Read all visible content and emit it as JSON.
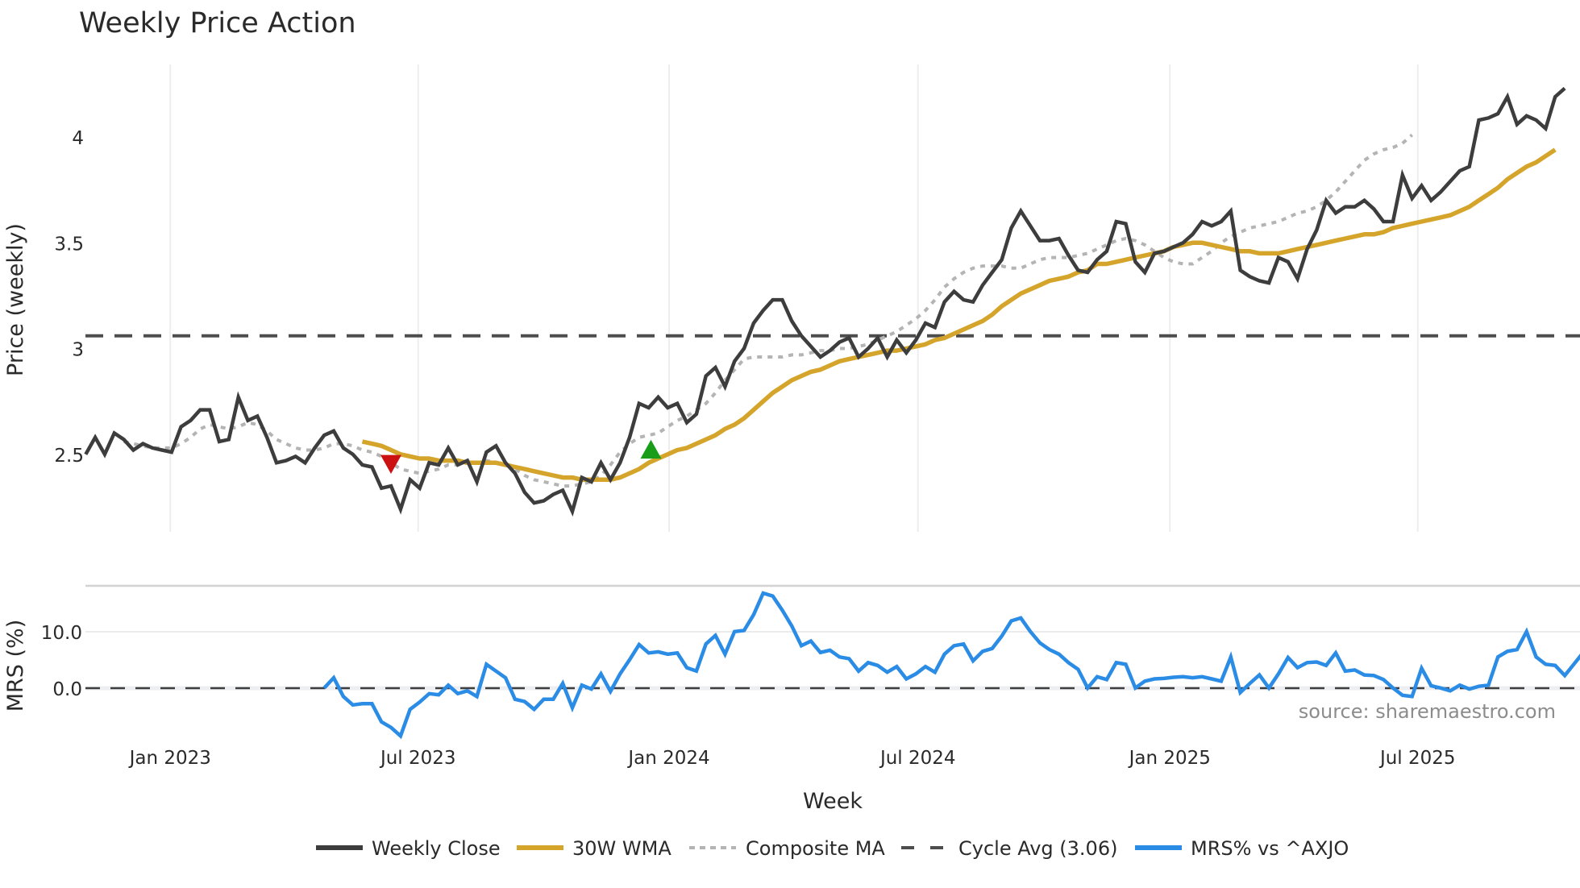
{
  "chart_data": [
    {
      "type": "line",
      "title": "Weekly Price Action",
      "xlabel": "Week",
      "ylabel": "Price (weekly)",
      "yticks": [
        "2.5",
        "3",
        "3.5",
        "4"
      ],
      "ylim": [
        2.18,
        4.35
      ],
      "xticks": [
        "Jan 2023",
        "Jul 2023",
        "Jan 2024",
        "Jul 2024",
        "Jan 2025",
        "Jul 2025"
      ],
      "grid": {
        "vertical": true,
        "horizontal": false
      },
      "hline": {
        "name": "Cycle Avg (3.06)",
        "value": 3.06
      },
      "markers": [
        {
          "type": "sell",
          "shape": "triangle-down",
          "color": "#cc1111",
          "week_index": 32,
          "value": 2.46
        },
        {
          "type": "buy",
          "shape": "triangle-up",
          "color": "#1a9e1a",
          "week_index": 59,
          "value": 2.52
        }
      ],
      "series": [
        {
          "name": "Weekly Close",
          "color": "#3d3d3d",
          "values": [
            2.5,
            2.58,
            2.5,
            2.6,
            2.57,
            2.52,
            2.55,
            2.53,
            2.52,
            2.51,
            2.63,
            2.66,
            2.71,
            2.71,
            2.56,
            2.57,
            2.77,
            2.66,
            2.68,
            2.58,
            2.46,
            2.47,
            2.49,
            2.46,
            2.53,
            2.59,
            2.61,
            2.53,
            2.5,
            2.45,
            2.44,
            2.34,
            2.35,
            2.24,
            2.38,
            2.34,
            2.46,
            2.45,
            2.53,
            2.45,
            2.47,
            2.37,
            2.51,
            2.54,
            2.46,
            2.41,
            2.32,
            2.27,
            2.28,
            2.31,
            2.33,
            2.23,
            2.39,
            2.37,
            2.46,
            2.38,
            2.46,
            2.58,
            2.74,
            2.72,
            2.77,
            2.72,
            2.74,
            2.65,
            2.69,
            2.87,
            2.91,
            2.82,
            2.94,
            3.0,
            3.12,
            3.18,
            3.23,
            3.23,
            3.13,
            3.06,
            3.01,
            2.96,
            2.99,
            3.03,
            3.05,
            2.96,
            3.0,
            3.05,
            2.96,
            3.04,
            2.98,
            3.04,
            3.12,
            3.1,
            3.22,
            3.27,
            3.23,
            3.22,
            3.3,
            3.36,
            3.42,
            3.57,
            3.65,
            3.58,
            3.51,
            3.51,
            3.52,
            3.44,
            3.37,
            3.36,
            3.42,
            3.46,
            3.6,
            3.59,
            3.41,
            3.36,
            3.45,
            3.46,
            3.48,
            3.5,
            3.54,
            3.6,
            3.58,
            3.6,
            3.65,
            3.37,
            3.34,
            3.32,
            3.31,
            3.43,
            3.41,
            3.33,
            3.47,
            3.56,
            3.7,
            3.64,
            3.67,
            3.67,
            3.7,
            3.66,
            3.6,
            3.6,
            3.82,
            3.71,
            3.77,
            3.7,
            3.74,
            3.79,
            3.84,
            3.86,
            4.08,
            4.09,
            4.11,
            4.19,
            4.06,
            4.1,
            4.08,
            4.04,
            4.19,
            4.23
          ]
        },
        {
          "name": "30W WMA",
          "color": "#d4a52a",
          "start_index": 29,
          "values": [
            2.56,
            2.55,
            2.54,
            2.52,
            2.5,
            2.49,
            2.48,
            2.48,
            2.47,
            2.47,
            2.47,
            2.46,
            2.46,
            2.46,
            2.46,
            2.45,
            2.44,
            2.43,
            2.42,
            2.41,
            2.4,
            2.39,
            2.39,
            2.38,
            2.38,
            2.38,
            2.38,
            2.39,
            2.41,
            2.43,
            2.46,
            2.48,
            2.5,
            2.52,
            2.53,
            2.55,
            2.57,
            2.59,
            2.62,
            2.64,
            2.67,
            2.71,
            2.75,
            2.79,
            2.82,
            2.85,
            2.87,
            2.89,
            2.9,
            2.92,
            2.94,
            2.95,
            2.96,
            2.97,
            2.98,
            2.99,
            2.99,
            3.0,
            3.01,
            3.02,
            3.04,
            3.05,
            3.07,
            3.09,
            3.11,
            3.13,
            3.16,
            3.2,
            3.23,
            3.26,
            3.28,
            3.3,
            3.32,
            3.33,
            3.34,
            3.36,
            3.37,
            3.4,
            3.4,
            3.41,
            3.42,
            3.43,
            3.44,
            3.45,
            3.46,
            3.48,
            3.49,
            3.5,
            3.5,
            3.49,
            3.48,
            3.47,
            3.46,
            3.46,
            3.45,
            3.45,
            3.45,
            3.46,
            3.47,
            3.48,
            3.49,
            3.5,
            3.51,
            3.52,
            3.53,
            3.54,
            3.54,
            3.55,
            3.57,
            3.58,
            3.59,
            3.6,
            3.61,
            3.62,
            3.63,
            3.65,
            3.67,
            3.7,
            3.73,
            3.76,
            3.8,
            3.83,
            3.86,
            3.88,
            3.91,
            3.94
          ]
        },
        {
          "name": "Composite MA",
          "color": "#b4b4b4",
          "start_index": 4,
          "values": [
            2.56,
            2.55,
            2.54,
            2.53,
            2.53,
            2.53,
            2.55,
            2.58,
            2.62,
            2.64,
            2.63,
            2.62,
            2.63,
            2.65,
            2.64,
            2.61,
            2.57,
            2.55,
            2.53,
            2.52,
            2.52,
            2.53,
            2.55,
            2.55,
            2.54,
            2.52,
            2.51,
            2.49,
            2.46,
            2.43,
            2.42,
            2.41,
            2.42,
            2.43,
            2.45,
            2.45,
            2.46,
            2.46,
            2.47,
            2.46,
            2.45,
            2.43,
            2.4,
            2.38,
            2.37,
            2.36,
            2.35,
            2.35,
            2.36,
            2.37,
            2.4,
            2.45,
            2.51,
            2.55,
            2.58,
            2.59,
            2.6,
            2.63,
            2.66,
            2.68,
            2.71,
            2.74,
            2.79,
            2.85,
            2.9,
            2.95,
            2.96,
            2.96,
            2.96,
            2.96,
            2.97,
            2.97,
            2.98,
            2.99,
            2.99,
            3.0,
            3.0,
            3.01,
            3.02,
            3.04,
            3.06,
            3.08,
            3.11,
            3.14,
            3.18,
            3.23,
            3.29,
            3.33,
            3.36,
            3.38,
            3.39,
            3.39,
            3.39,
            3.38,
            3.38,
            3.4,
            3.42,
            3.43,
            3.43,
            3.43,
            3.44,
            3.45,
            3.47,
            3.49,
            3.51,
            3.52,
            3.51,
            3.49,
            3.46,
            3.43,
            3.41,
            3.4,
            3.4,
            3.43,
            3.46,
            3.5,
            3.53,
            3.55,
            3.57,
            3.58,
            3.59,
            3.6,
            3.62,
            3.64,
            3.65,
            3.67,
            3.7,
            3.74,
            3.79,
            3.84,
            3.89,
            3.92,
            3.94,
            3.95,
            3.97,
            4.01
          ]
        }
      ]
    },
    {
      "type": "line",
      "title": "",
      "xlabel": "Week",
      "ylabel": "MRS (%)",
      "yticks": [
        "0.0",
        "10.0"
      ],
      "ylim": [
        -9.5,
        17.5
      ],
      "hline": {
        "value": 0.0
      },
      "annotation": "source: sharemaestro.com",
      "series": [
        {
          "name": "MRS% vs ^AXJO",
          "color": "#2b8ce6",
          "start_index": 25,
          "values": [
            0.0,
            1.8,
            -1.5,
            -3.0,
            -2.8,
            -2.8,
            -6.0,
            -7.0,
            -8.5,
            -3.8,
            -2.5,
            -1.0,
            -1.2,
            0.5,
            -1.0,
            -0.5,
            -1.5,
            4.2,
            3.0,
            1.8,
            -2.0,
            -2.4,
            -3.8,
            -2.0,
            -2.0,
            0.8,
            -3.5,
            0.5,
            -0.2,
            2.5,
            -0.6,
            2.5,
            5.0,
            7.7,
            6.2,
            6.4,
            6.0,
            6.2,
            3.6,
            3.0,
            7.8,
            9.3,
            6.0,
            10.0,
            10.2,
            13.0,
            16.8,
            16.3,
            13.8,
            11.0,
            7.5,
            8.3,
            6.3,
            6.7,
            5.5,
            5.2,
            3.0,
            4.5,
            4.0,
            2.8,
            3.8,
            1.6,
            2.5,
            3.8,
            2.8,
            6.0,
            7.5,
            7.8,
            4.8,
            6.5,
            7.0,
            9.2,
            11.9,
            12.4,
            10.0,
            8.0,
            6.8,
            6.0,
            4.5,
            3.3,
            0.0,
            2.0,
            1.5,
            4.5,
            4.2,
            0.0,
            1.2,
            1.6,
            1.7,
            1.9,
            2.0,
            1.8,
            2.0,
            1.6,
            1.2,
            5.5,
            -0.8,
            0.8,
            2.3,
            0.0,
            2.5,
            5.4,
            3.6,
            4.5,
            4.6,
            4.0,
            6.2,
            3.0,
            3.2,
            2.3,
            2.2,
            1.5,
            0.0,
            -1.3,
            -1.5,
            3.5,
            0.4,
            0.0,
            -0.5,
            0.5,
            -0.2,
            0.3,
            0.5,
            5.5,
            6.5,
            6.8,
            10.0,
            5.5,
            4.2,
            4.0,
            2.2,
            4.3,
            6.4,
            7.8
          ]
        }
      ]
    }
  ],
  "legend": [
    {
      "label": "Weekly Close",
      "style": "solid",
      "color": "#3d3d3d"
    },
    {
      "label": "30W WMA",
      "style": "solid",
      "color": "#d4a52a"
    },
    {
      "label": "Composite MA",
      "style": "dotted",
      "color": "#b4b4b4"
    },
    {
      "label": "Cycle Avg (3.06)",
      "style": "dashed",
      "color": "#4d4d4d"
    },
    {
      "label": "MRS% vs ^AXJO",
      "style": "solid",
      "color": "#2b8ce6"
    }
  ]
}
